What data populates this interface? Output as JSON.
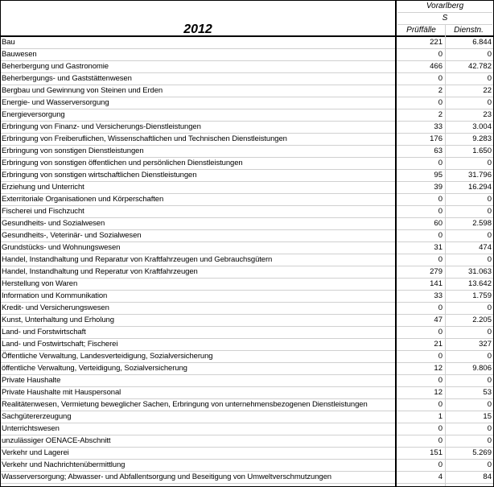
{
  "header": {
    "year": "2012",
    "region": "Vorarlberg",
    "sub": "S",
    "col1": "Prüffälle",
    "col2": "Dienstn."
  },
  "rows": [
    {
      "label": "Bau",
      "pruef": "221",
      "dienst": "6.844"
    },
    {
      "label": "Bauwesen",
      "pruef": "0",
      "dienst": "0"
    },
    {
      "label": "Beherbergung und Gastronomie",
      "pruef": "466",
      "dienst": "42.782"
    },
    {
      "label": "Beherbergungs- und Gaststättenwesen",
      "pruef": "0",
      "dienst": "0"
    },
    {
      "label": "Bergbau und Gewinnung von Steinen und Erden",
      "pruef": "2",
      "dienst": "22"
    },
    {
      "label": "Energie- und Wasserversorgung",
      "pruef": "0",
      "dienst": "0"
    },
    {
      "label": "Energieversorgung",
      "pruef": "2",
      "dienst": "23"
    },
    {
      "label": "Erbringung von Finanz- und Versicherungs-Dienstleistungen",
      "pruef": "33",
      "dienst": "3.004"
    },
    {
      "label": "Erbringung von Freiberuflichen, Wissenschaftlichen und Technischen Dienstleistungen",
      "pruef": "176",
      "dienst": "9.283"
    },
    {
      "label": "Erbringung von sonstigen Dienstleistungen",
      "pruef": "63",
      "dienst": "1.650"
    },
    {
      "label": "Erbringung von sonstigen öffentlichen und persönlichen Dienstleistungen",
      "pruef": "0",
      "dienst": "0"
    },
    {
      "label": "Erbringung von sonstigen wirtschaftlichen Dienstleistungen",
      "pruef": "95",
      "dienst": "31.796"
    },
    {
      "label": "Erziehung und Unterricht",
      "pruef": "39",
      "dienst": "16.294"
    },
    {
      "label": "Exterritoriale Organisationen und Körperschaften",
      "pruef": "0",
      "dienst": "0"
    },
    {
      "label": "Fischerei und Fischzucht",
      "pruef": "0",
      "dienst": "0"
    },
    {
      "label": "Gesundheits- und Sozialwesen",
      "pruef": "60",
      "dienst": "2.598"
    },
    {
      "label": "Gesundheits-, Veterinär- und Sozialwesen",
      "pruef": "0",
      "dienst": "0"
    },
    {
      "label": "Grundstücks- und Wohnungswesen",
      "pruef": "31",
      "dienst": "474"
    },
    {
      "label": "Handel, Instandhaltung und Reparatur von Kraftfahrzeugen und Gebrauchsgütern",
      "pruef": "0",
      "dienst": "0"
    },
    {
      "label": "Handel, Instandhaltung und Reperatur von Kraftfahrzeugen",
      "pruef": "279",
      "dienst": "31.063"
    },
    {
      "label": "Herstellung von Waren",
      "pruef": "141",
      "dienst": "13.642"
    },
    {
      "label": "Information und Kommunikation",
      "pruef": "33",
      "dienst": "1.759"
    },
    {
      "label": "Kredit- und Versicherungswesen",
      "pruef": "0",
      "dienst": "0"
    },
    {
      "label": "Kunst, Unterhaltung und Erholung",
      "pruef": "47",
      "dienst": "2.205"
    },
    {
      "label": "Land- und Forstwirtschaft",
      "pruef": "0",
      "dienst": "0"
    },
    {
      "label": "Land- und Fostwirtschaft; Fischerei",
      "pruef": "21",
      "dienst": "327"
    },
    {
      "label": "Öffentliche Verwaltung, Landesverteidigung, Sozialversicherung",
      "pruef": "0",
      "dienst": "0"
    },
    {
      "label": "öffentliche Verwaltung, Verteidigung, Sozialversicherung",
      "pruef": "12",
      "dienst": "9.806"
    },
    {
      "label": "Private Haushalte",
      "pruef": "0",
      "dienst": "0"
    },
    {
      "label": "Private Haushalte mit Hauspersonal",
      "pruef": "12",
      "dienst": "53"
    },
    {
      "label": "Realitätenwesen, Vermietung beweglicher Sachen, Erbringung von unternehmensbezogenen Dienstleistungen",
      "pruef": "0",
      "dienst": "0"
    },
    {
      "label": "Sachgütererzeugung",
      "pruef": "1",
      "dienst": "15"
    },
    {
      "label": "Unterrichtswesen",
      "pruef": "0",
      "dienst": "0"
    },
    {
      "label": "unzulässiger OENACE-Abschnitt",
      "pruef": "0",
      "dienst": "0"
    },
    {
      "label": "Verkehr und Lagerei",
      "pruef": "151",
      "dienst": "5.269"
    },
    {
      "label": "Verkehr und Nachrichtenübermittlung",
      "pruef": "0",
      "dienst": "0"
    },
    {
      "label": "Wasserversorgung; Abwasser- und Abfallentsorgung und Beseitigung von Umweltverschmutzungen",
      "pruef": "4",
      "dienst": "84"
    }
  ]
}
